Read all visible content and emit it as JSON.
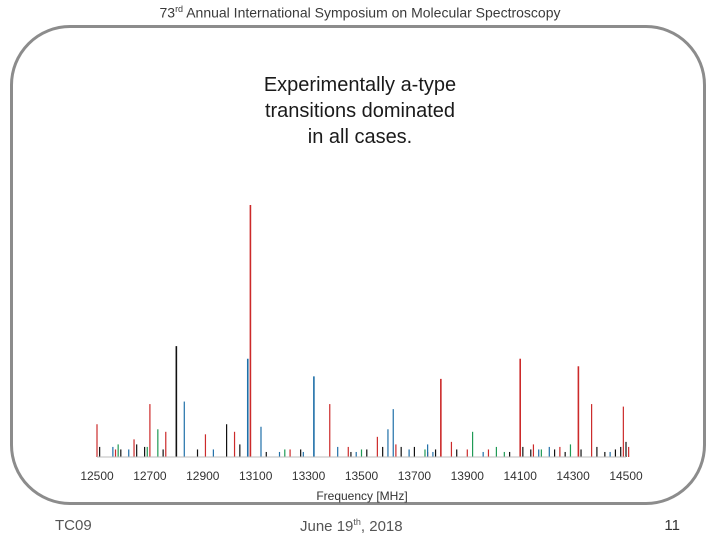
{
  "header": {
    "prefix": "73",
    "sup": "rd",
    "text": " Annual International Symposium on Molecular Spectroscopy"
  },
  "slide": {
    "subtitle_lines": [
      "Experimentally a-type",
      "transitions dominated",
      "in all cases."
    ]
  },
  "footer": {
    "left": "TC09",
    "date_prefix": "June 19",
    "date_sup": "th",
    "date_suffix": ", 2018",
    "page_number": "11"
  },
  "colors": {
    "red": "#cc2a2a",
    "blue": "#1f6fa8",
    "green": "#1f9a55",
    "black": "#111111",
    "frame": "#8c8c8c"
  },
  "chart_data": {
    "type": "bar",
    "title": "",
    "xlabel": "Frequency [MHz]",
    "ylabel": "",
    "xlim": [
      12500,
      14500
    ],
    "ylim": [
      0,
      100
    ],
    "xticks": [
      12500,
      12700,
      12900,
      13100,
      13300,
      13500,
      13700,
      13900,
      14100,
      14300,
      14500
    ],
    "series": [
      {
        "name": "red",
        "color": "red",
        "x": [
          12500,
          12570,
          12640,
          12700,
          12760,
          12910,
          13020,
          13080,
          13230,
          13380,
          13450,
          13560,
          13630,
          13750,
          13800,
          13840,
          13900,
          13980,
          14100,
          14150,
          14250,
          14320,
          14370,
          14490,
          14510
        ],
        "y": [
          13,
          3,
          7,
          21,
          10,
          9,
          10,
          100,
          3,
          21,
          4,
          8,
          5,
          2,
          31,
          6,
          3,
          3,
          39,
          5,
          4,
          36,
          21,
          20,
          4
        ]
      },
      {
        "name": "blue",
        "color": "blue",
        "x": [
          12560,
          12620,
          12830,
          12940,
          13070,
          13120,
          13190,
          13280,
          13320,
          13410,
          13480,
          13600,
          13620,
          13680,
          13750,
          13770,
          13960,
          14170,
          14210,
          14440
        ],
        "y": [
          4,
          3,
          22,
          3,
          39,
          12,
          2,
          2,
          32,
          4,
          2,
          11,
          19,
          3,
          5,
          2,
          2,
          3,
          4,
          2
        ]
      },
      {
        "name": "green",
        "color": "green",
        "x": [
          12580,
          12690,
          12730,
          13210,
          13500,
          13740,
          13920,
          14010,
          14040,
          14180,
          14290
        ],
        "y": [
          5,
          4,
          11,
          3,
          3,
          3,
          10,
          4,
          2,
          3,
          5
        ]
      },
      {
        "name": "black",
        "color": "black",
        "x": [
          12510,
          12590,
          12650,
          12680,
          12750,
          12800,
          12880,
          12990,
          13040,
          13140,
          13270,
          13460,
          13520,
          13580,
          13650,
          13700,
          13780,
          13860,
          14060,
          14110,
          14140,
          14230,
          14270,
          14330,
          14390,
          14420,
          14460,
          14480,
          14500
        ],
        "y": [
          4,
          3,
          5,
          4,
          3,
          44,
          3,
          13,
          5,
          2,
          3,
          2,
          3,
          4,
          4,
          4,
          3,
          3,
          2,
          4,
          3,
          3,
          2,
          3,
          4,
          2,
          3,
          4,
          6
        ]
      }
    ]
  }
}
